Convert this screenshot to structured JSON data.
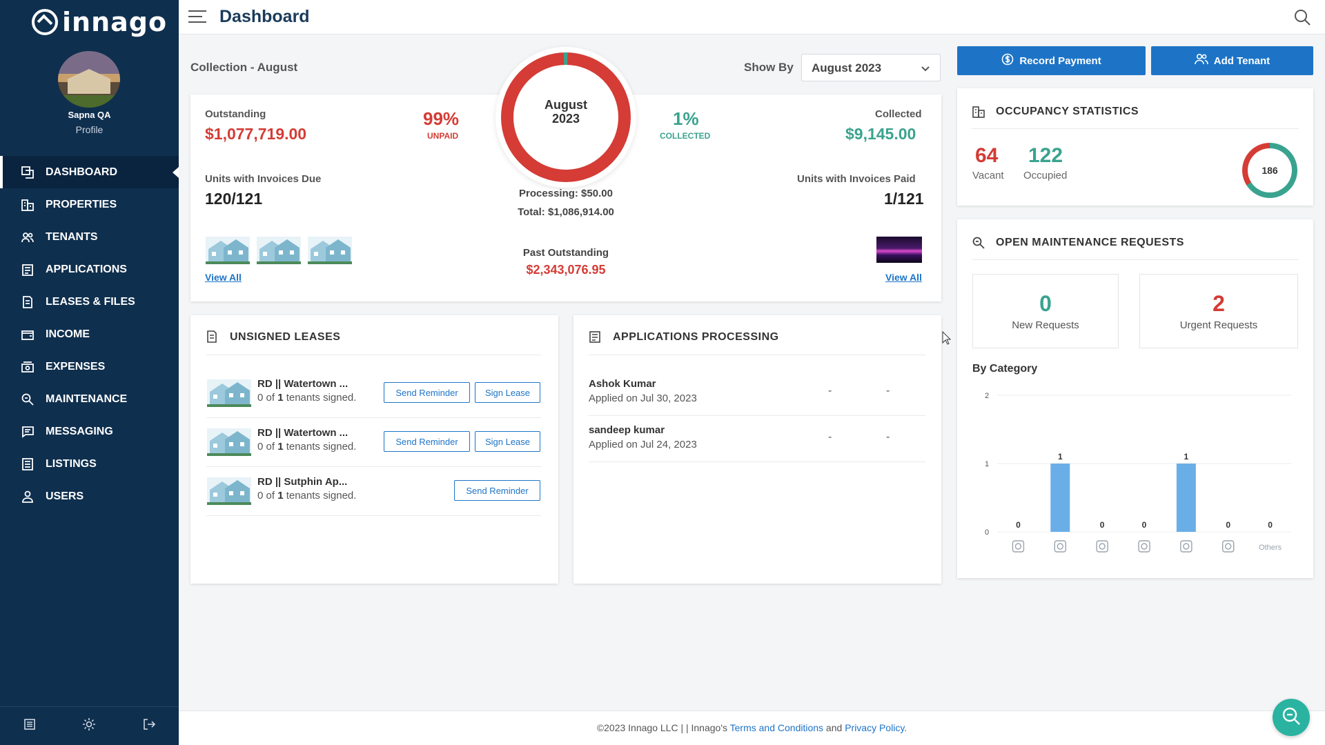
{
  "app": {
    "logo_text": "innago",
    "title": "Dashboard"
  },
  "user": {
    "name": "Sapna QA",
    "profile_label": "Profile"
  },
  "nav": [
    {
      "label": "DASHBOARD",
      "icon": "dashboard-icon",
      "active": true
    },
    {
      "label": "PROPERTIES",
      "icon": "building-icon"
    },
    {
      "label": "TENANTS",
      "icon": "users-icon"
    },
    {
      "label": "APPLICATIONS",
      "icon": "clipboard-icon"
    },
    {
      "label": "LEASES & FILES",
      "icon": "document-icon"
    },
    {
      "label": "INCOME",
      "icon": "wallet-icon"
    },
    {
      "label": "EXPENSES",
      "icon": "cash-icon"
    },
    {
      "label": "MAINTENANCE",
      "icon": "wrench-search-icon"
    },
    {
      "label": "MESSAGING",
      "icon": "message-icon"
    },
    {
      "label": "LISTINGS",
      "icon": "list-icon"
    },
    {
      "label": "USERS",
      "icon": "user-icon"
    }
  ],
  "collection": {
    "header": "Collection - August",
    "show_by_label": "Show By",
    "show_by_value": "August 2023",
    "outstanding_label": "Outstanding",
    "outstanding_value": "$1,077,719.00",
    "unpaid_pct": "99%",
    "unpaid_label": "UNPAID",
    "donut_month": "August",
    "donut_year": "2023",
    "collected_pct": "1%",
    "collected_pct_label": "COLLECTED",
    "collected_label": "Collected",
    "collected_value": "$9,145.00",
    "units_due_label": "Units with Invoices Due",
    "units_due_value": "120/121",
    "processing": "Processing: $50.00",
    "total": "Total: $1,086,914.00",
    "units_paid_label": "Units with Invoices Paid",
    "units_paid_value": "1/121",
    "past_outstanding_label": "Past Outstanding",
    "past_outstanding_value": "$2,343,076.95",
    "view_all": "View All",
    "collected_fraction": 0.01
  },
  "buttons": {
    "record_payment": "Record Payment",
    "add_tenant": "Add Tenant"
  },
  "occupancy": {
    "title": "OCCUPANCY STATISTICS",
    "vacant": "64",
    "vacant_label": "Vacant",
    "occupied": "122",
    "occupied_label": "Occupied",
    "total": "186"
  },
  "maintenance": {
    "title": "OPEN MAINTENANCE REQUESTS",
    "new_count": "0",
    "new_label": "New Requests",
    "urgent_count": "2",
    "urgent_label": "Urgent Requests",
    "by_category": "By Category"
  },
  "chart_data": {
    "type": "bar",
    "categories": [
      "cat1",
      "cat2",
      "cat3",
      "cat4",
      "cat5",
      "cat6",
      "Others"
    ],
    "category_icons": [
      "lamp-icon",
      "bathtub-icon",
      "stove-icon",
      "thermometer-icon",
      "tree-icon",
      "washer-icon",
      ""
    ],
    "values": [
      0,
      1,
      0,
      0,
      1,
      0,
      0
    ],
    "ylim": [
      0,
      2
    ],
    "yticks": [
      "0",
      "1",
      "2"
    ],
    "bar_color": "#6aaee8",
    "others_label": "Others"
  },
  "unsigned_leases": {
    "title": "UNSIGNED LEASES",
    "rows": [
      {
        "name": "RD || Watertown ...",
        "pre": "0 of ",
        "count": "1",
        "post": " tenants signed.",
        "reminder": "Send Reminder",
        "sign": "Sign Lease"
      },
      {
        "name": "RD || Watertown ...",
        "pre": "0 of ",
        "count": "1",
        "post": " tenants signed.",
        "reminder": "Send Reminder",
        "sign": "Sign Lease"
      },
      {
        "name": "RD || Sutphin Ap...",
        "pre": "0 of ",
        "count": "1",
        "post": " tenants signed.",
        "reminder": "Send Reminder",
        "sign": ""
      }
    ]
  },
  "applications": {
    "title": "APPLICATIONS PROCESSING",
    "rows": [
      {
        "name": "Ashok Kumar",
        "date": "Applied on Jul 30, 2023",
        "col1": "-",
        "col2": "-"
      },
      {
        "name": "sandeep kumar",
        "date": "Applied on Jul 24, 2023",
        "col1": "-",
        "col2": "-"
      }
    ]
  },
  "footer": {
    "copyright": "©2023 Innago LLC | | Innago's ",
    "terms": "Terms and Conditions",
    "and": " and ",
    "privacy": "Privacy Policy",
    "end": "."
  },
  "colors": {
    "sidebar": "#0f2f4e",
    "primary": "#1d74c7",
    "red": "#d43c35",
    "teal": "#3aa38f"
  }
}
